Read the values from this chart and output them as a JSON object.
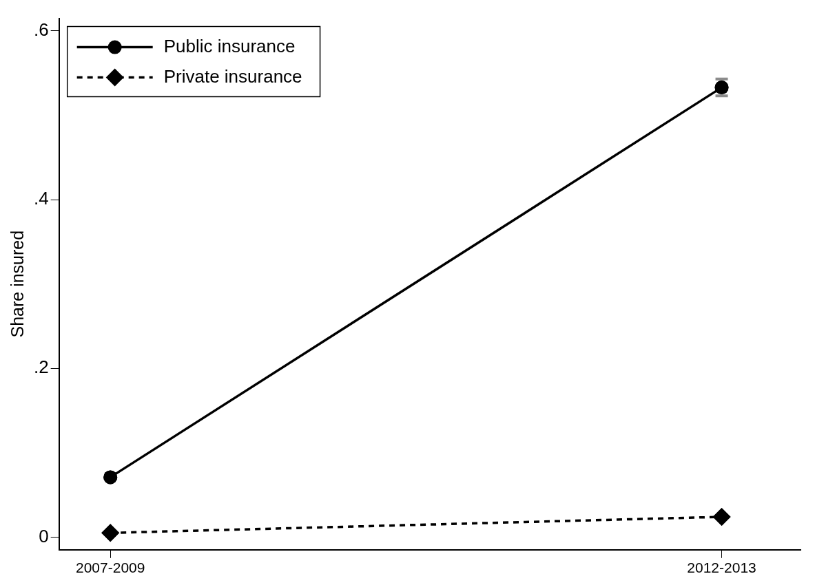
{
  "chart_data": {
    "type": "line",
    "ylabel": "Share insured",
    "categories": [
      "2007-2009",
      "2012-2013"
    ],
    "series": [
      {
        "name": "Public insurance",
        "color": "#000000",
        "values": [
          0.071,
          0.533
        ],
        "errors": [
          null,
          0.01
        ],
        "marker": "circle",
        "line_style": "solid"
      },
      {
        "name": "Private insurance",
        "color": "#000000",
        "values": [
          0.005,
          0.024
        ],
        "marker": "diamond",
        "line_style": "dashed"
      }
    ],
    "ylim": [
      -0.015,
      0.615
    ],
    "yticks": [
      0,
      {
        "value": 0.2,
        "label": ".2"
      },
      {
        "value": 0.4,
        "label": ".4"
      },
      {
        "value": 0.6,
        "label": ".6"
      }
    ],
    "grid": false,
    "legend": "top left"
  }
}
